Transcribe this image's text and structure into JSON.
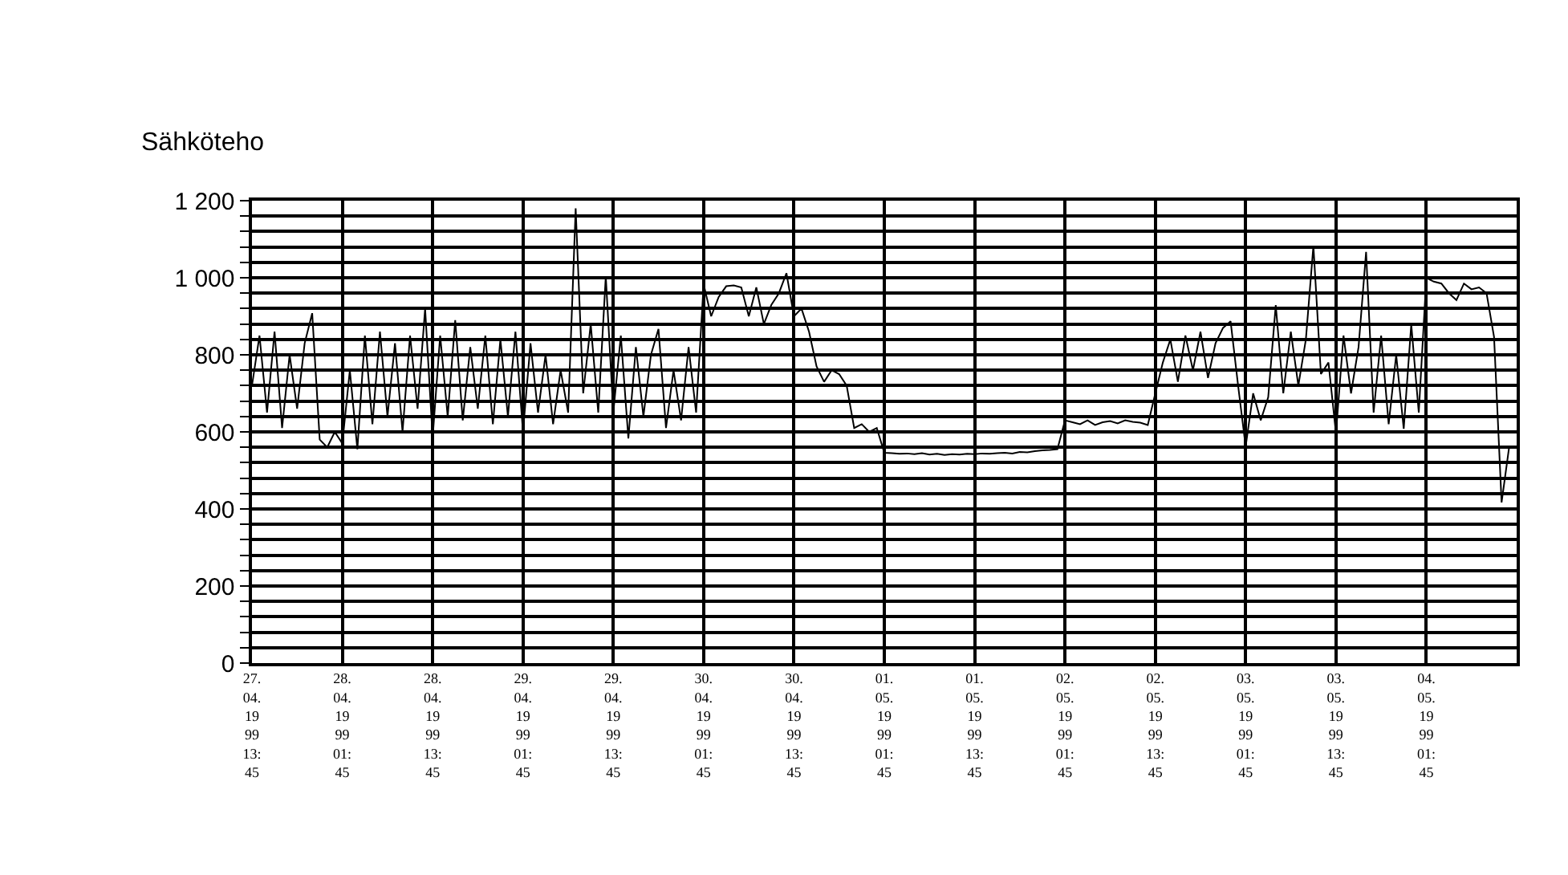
{
  "chart_data": {
    "type": "line",
    "title": "Sähköteho",
    "x": [
      "1999-04-27T13:45",
      "1999-04-27T14:45",
      "1999-04-27T15:45",
      "1999-04-27T16:45",
      "1999-04-27T17:45",
      "1999-04-27T18:45",
      "1999-04-27T19:45",
      "1999-04-27T20:45",
      "1999-04-27T21:45",
      "1999-04-27T22:45",
      "1999-04-27T23:45",
      "1999-04-28T00:45",
      "1999-04-28T01:45",
      "1999-04-28T02:45",
      "1999-04-28T03:45",
      "1999-04-28T04:45",
      "1999-04-28T05:45",
      "1999-04-28T06:45",
      "1999-04-28T07:45",
      "1999-04-28T08:45",
      "1999-04-28T09:45",
      "1999-04-28T10:45",
      "1999-04-28T11:45",
      "1999-04-28T12:45",
      "1999-04-28T13:45",
      "1999-04-28T14:45",
      "1999-04-28T15:45",
      "1999-04-28T16:45",
      "1999-04-28T17:45",
      "1999-04-28T18:45",
      "1999-04-28T19:45",
      "1999-04-28T20:45",
      "1999-04-28T21:45",
      "1999-04-28T22:45",
      "1999-04-28T23:45",
      "1999-04-29T00:45",
      "1999-04-29T01:45",
      "1999-04-29T02:45",
      "1999-04-29T03:45",
      "1999-04-29T04:45",
      "1999-04-29T05:45",
      "1999-04-29T06:45",
      "1999-04-29T07:45",
      "1999-04-29T08:45",
      "1999-04-29T09:45",
      "1999-04-29T10:45",
      "1999-04-29T11:45",
      "1999-04-29T12:45",
      "1999-04-29T13:45",
      "1999-04-29T14:45",
      "1999-04-29T15:45",
      "1999-04-29T16:45",
      "1999-04-29T17:45",
      "1999-04-29T18:45",
      "1999-04-29T19:45",
      "1999-04-29T20:45",
      "1999-04-29T21:45",
      "1999-04-29T22:45",
      "1999-04-29T23:45",
      "1999-04-30T00:45",
      "1999-04-30T01:45",
      "1999-04-30T02:45",
      "1999-04-30T03:45",
      "1999-04-30T04:45",
      "1999-04-30T05:45",
      "1999-04-30T06:45",
      "1999-04-30T07:45",
      "1999-04-30T08:45",
      "1999-04-30T09:45",
      "1999-04-30T10:45",
      "1999-04-30T11:45",
      "1999-04-30T12:45",
      "1999-04-30T13:45",
      "1999-04-30T14:45",
      "1999-04-30T15:45",
      "1999-04-30T16:45",
      "1999-04-30T17:45",
      "1999-04-30T18:45",
      "1999-04-30T19:45",
      "1999-04-30T20:45",
      "1999-04-30T21:45",
      "1999-04-30T22:45",
      "1999-04-30T23:45",
      "1999-05-01T00:45",
      "1999-05-01T01:45",
      "1999-05-01T02:45",
      "1999-05-01T03:45",
      "1999-05-01T04:45",
      "1999-05-01T05:45",
      "1999-05-01T06:45",
      "1999-05-01T07:45",
      "1999-05-01T08:45",
      "1999-05-01T09:45",
      "1999-05-01T10:45",
      "1999-05-01T11:45",
      "1999-05-01T12:45",
      "1999-05-01T13:45",
      "1999-05-01T14:45",
      "1999-05-01T15:45",
      "1999-05-01T16:45",
      "1999-05-01T17:45",
      "1999-05-01T18:45",
      "1999-05-01T19:45",
      "1999-05-01T20:45",
      "1999-05-01T21:45",
      "1999-05-01T22:45",
      "1999-05-01T23:45",
      "1999-05-02T00:45",
      "1999-05-02T01:45",
      "1999-05-02T02:45",
      "1999-05-02T03:45",
      "1999-05-02T04:45",
      "1999-05-02T05:45",
      "1999-05-02T06:45",
      "1999-05-02T07:45",
      "1999-05-02T08:45",
      "1999-05-02T09:45",
      "1999-05-02T10:45",
      "1999-05-02T11:45",
      "1999-05-02T12:45",
      "1999-05-02T13:45",
      "1999-05-02T14:45",
      "1999-05-02T15:45",
      "1999-05-02T16:45",
      "1999-05-02T17:45",
      "1999-05-02T18:45",
      "1999-05-02T19:45",
      "1999-05-02T20:45",
      "1999-05-02T21:45",
      "1999-05-02T22:45",
      "1999-05-02T23:45",
      "1999-05-03T00:45",
      "1999-05-03T01:45",
      "1999-05-03T02:45",
      "1999-05-03T03:45",
      "1999-05-03T04:45",
      "1999-05-03T05:45",
      "1999-05-03T06:45",
      "1999-05-03T07:45",
      "1999-05-03T08:45",
      "1999-05-03T09:45",
      "1999-05-03T10:45",
      "1999-05-03T11:45",
      "1999-05-03T12:45",
      "1999-05-03T13:45",
      "1999-05-03T14:45",
      "1999-05-03T15:45",
      "1999-05-03T16:45",
      "1999-05-03T17:45",
      "1999-05-03T18:45",
      "1999-05-03T19:45",
      "1999-05-03T20:45",
      "1999-05-03T21:45",
      "1999-05-03T22:45",
      "1999-05-03T23:45",
      "1999-05-04T00:45",
      "1999-05-04T01:45",
      "1999-05-04T02:45",
      "1999-05-04T03:45",
      "1999-05-04T04:45",
      "1999-05-04T05:45",
      "1999-05-04T06:45",
      "1999-05-04T07:45",
      "1999-05-04T08:45",
      "1999-05-04T09:45",
      "1999-05-04T10:45",
      "1999-05-04T11:45",
      "1999-05-04T12:45"
    ],
    "series": [
      {
        "color": "#000000",
        "values": [
          720,
          850,
          650,
          860,
          610,
          800,
          660,
          830,
          908,
          580,
          560,
          600,
          570,
          760,
          555,
          850,
          620,
          860,
          640,
          830,
          600,
          850,
          660,
          920,
          585,
          850,
          640,
          890,
          630,
          820,
          660,
          850,
          620,
          840,
          640,
          860,
          600,
          830,
          650,
          800,
          620,
          760,
          650,
          1180,
          700,
          880,
          650,
          1004,
          650,
          850,
          583,
          820,
          640,
          800,
          867,
          610,
          760,
          630,
          820,
          650,
          983,
          900,
          950,
          978,
          980,
          975,
          900,
          975,
          880,
          930,
          960,
          1012,
          900,
          920,
          860,
          770,
          730,
          760,
          750,
          720,
          610,
          620,
          600,
          610,
          546,
          545,
          543,
          544,
          542,
          545,
          541,
          543,
          540,
          542,
          541,
          543,
          542,
          544,
          543,
          545,
          546,
          544,
          548,
          547,
          550,
          552,
          553,
          555,
          630,
          625,
          620,
          630,
          618,
          625,
          628,
          622,
          630,
          626,
          624,
          618,
          700,
          780,
          840,
          730,
          850,
          760,
          860,
          740,
          830,
          870,
          887,
          720,
          562,
          700,
          630,
          690,
          929,
          700,
          860,
          720,
          840,
          1083,
          750,
          780,
          596,
          850,
          700,
          820,
          1067,
          650,
          850,
          620,
          800,
          608,
          879,
          650,
          1000,
          990,
          985,
          960,
          942,
          985,
          970,
          975,
          960,
          846,
          417,
          560
        ]
      }
    ],
    "xlim": [
      "1999-04-27T13:45",
      "1999-05-04T13:45"
    ],
    "xticks": [
      {
        "value": "1999-04-27T13:45",
        "label": "27.\n04.\n19\n99\n13:\n45"
      },
      {
        "value": "1999-04-28T01:45",
        "label": "28.\n04.\n19\n99\n01:\n45"
      },
      {
        "value": "1999-04-28T13:45",
        "label": "28.\n04.\n19\n99\n13:\n45"
      },
      {
        "value": "1999-04-29T01:45",
        "label": "29.\n04.\n19\n99\n01:\n45"
      },
      {
        "value": "1999-04-29T13:45",
        "label": "29.\n04.\n19\n99\n13:\n45"
      },
      {
        "value": "1999-04-30T01:45",
        "label": "30.\n04.\n19\n99\n01:\n45"
      },
      {
        "value": "1999-04-30T13:45",
        "label": "30.\n04.\n19\n99\n13:\n45"
      },
      {
        "value": "1999-05-01T01:45",
        "label": "01.\n05.\n19\n99\n01:\n45"
      },
      {
        "value": "1999-05-01T13:45",
        "label": "01.\n05.\n19\n99\n13:\n45"
      },
      {
        "value": "1999-05-02T01:45",
        "label": "02.\n05.\n19\n99\n01:\n45"
      },
      {
        "value": "1999-05-02T13:45",
        "label": "02.\n05.\n19\n99\n13:\n45"
      },
      {
        "value": "1999-05-03T01:45",
        "label": "03.\n05.\n19\n99\n01:\n45"
      },
      {
        "value": "1999-05-03T13:45",
        "label": "03.\n05.\n19\n99\n13:\n45"
      },
      {
        "value": "1999-05-04T01:45",
        "label": "04.\n05.\n19\n99\n01:\n45"
      }
    ],
    "ylim": [
      0,
      1200
    ],
    "yticks": [
      0,
      {
        "value": 40,
        "label": null
      },
      {
        "value": 80,
        "label": null
      },
      {
        "value": 120,
        "label": null
      },
      {
        "value": 160,
        "label": null
      },
      200,
      {
        "value": 240,
        "label": null
      },
      {
        "value": 280,
        "label": null
      },
      {
        "value": 320,
        "label": null
      },
      {
        "value": 360,
        "label": null
      },
      400,
      {
        "value": 440,
        "label": null
      },
      {
        "value": 480,
        "label": null
      },
      {
        "value": 520,
        "label": null
      },
      {
        "value": 560,
        "label": null
      },
      600,
      {
        "value": 640,
        "label": null
      },
      {
        "value": 680,
        "label": null
      },
      {
        "value": 720,
        "label": null
      },
      {
        "value": 760,
        "label": null
      },
      800,
      {
        "value": 840,
        "label": null
      },
      {
        "value": 880,
        "label": null
      },
      {
        "value": 920,
        "label": null
      },
      {
        "value": 960,
        "label": null
      },
      {
        "value": 1000,
        "label": "1 000"
      },
      {
        "value": 1040,
        "label": null
      },
      {
        "value": 1080,
        "label": null
      },
      {
        "value": 1120,
        "label": null
      },
      {
        "value": 1160,
        "label": null
      },
      {
        "value": 1200,
        "label": "1 200"
      }
    ],
    "grid": true,
    "marker": "none",
    "line_style": "solid"
  }
}
